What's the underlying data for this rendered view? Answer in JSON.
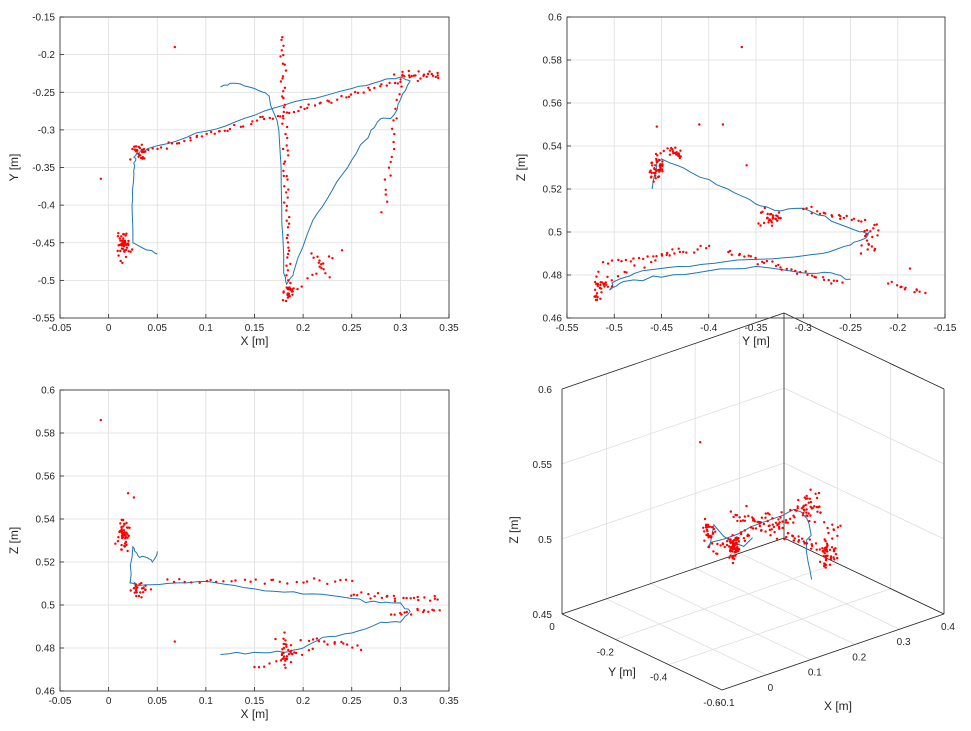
{
  "colors": {
    "trajectory": "#1f77b4",
    "points": "#ff0000",
    "grid": "#dedede",
    "axis": "#262626"
  },
  "chart_data": [
    {
      "type": "scatter",
      "xlabel": "X [m]",
      "ylabel": "Y [m]",
      "xlim": [
        -0.05,
        0.35
      ],
      "ylim": [
        -0.55,
        -0.15
      ],
      "xticks": [
        "-0.05",
        "0",
        "0.05",
        "0.1",
        "0.15",
        "0.2",
        "0.25",
        "0.3",
        "0.35"
      ],
      "yticks": [
        "-0.55",
        "-0.5",
        "-0.45",
        "-0.4",
        "-0.35",
        "-0.3",
        "-0.25",
        "-0.2",
        "-0.15"
      ],
      "grid": true,
      "series": [
        {
          "kind": "line",
          "x": [
            0.05,
            0.035,
            0.025,
            0.024,
            0.026,
            0.028,
            0.027,
            0.03,
            0.03,
            0.04,
            0.08,
            0.12,
            0.16,
            0.2,
            0.25,
            0.28,
            0.3,
            0.31,
            0.3,
            0.29,
            0.28,
            0.27,
            0.25,
            0.23,
            0.21,
            0.19,
            0.183,
            0.18,
            0.178,
            0.175,
            0.165,
            0.15,
            0.13,
            0.115
          ],
          "y": [
            -0.465,
            -0.457,
            -0.45,
            -0.4,
            -0.36,
            -0.34,
            -0.335,
            -0.33,
            -0.332,
            -0.325,
            -0.31,
            -0.295,
            -0.275,
            -0.26,
            -0.245,
            -0.235,
            -0.23,
            -0.235,
            -0.26,
            -0.285,
            -0.285,
            -0.3,
            -0.34,
            -0.38,
            -0.42,
            -0.49,
            -0.505,
            -0.49,
            -0.4,
            -0.3,
            -0.255,
            -0.245,
            -0.238,
            -0.243
          ]
        },
        {
          "kind": "points",
          "clusters": [
            {
              "x": 0.016,
              "y": -0.452,
              "sx": 0.003,
              "sy": 0.008,
              "n": 60
            },
            {
              "x": 0.03,
              "y": -0.33,
              "sx": 0.004,
              "sy": 0.006,
              "n": 25
            },
            {
              "x": 0.185,
              "y": -0.515,
              "sx": 0.003,
              "sy": 0.004,
              "n": 25
            },
            {
              "x": 0.322,
              "y": -0.228,
              "sx": 0.012,
              "sy": 0.003,
              "n": 25
            }
          ],
          "paths": [
            {
              "x": [
                0.035,
                0.3
              ],
              "y": [
                -0.33,
                -0.235
              ],
              "n": 70
            },
            {
              "x": [
                0.178,
                0.186
              ],
              "y": [
                -0.175,
                -0.51
              ],
              "n": 60
            },
            {
              "x": [
                0.3,
                0.282
              ],
              "y": [
                -0.235,
                -0.405
              ],
              "n": 20
            },
            {
              "x": [
                0.19,
                0.23
              ],
              "y": [
                -0.515,
                -0.47
              ],
              "n": 10
            },
            {
              "x": [
                0.21,
                0.225
              ],
              "y": [
                -0.465,
                -0.495
              ],
              "n": 10
            }
          ],
          "singles": [
            {
              "x": 0.068,
              "y": -0.19
            },
            {
              "x": -0.008,
              "y": -0.365
            },
            {
              "x": 0.24,
              "y": -0.46
            }
          ]
        }
      ]
    },
    {
      "type": "scatter",
      "xlabel": "Y [m]",
      "ylabel": "Z [m]",
      "xlim": [
        -0.55,
        -0.15
      ],
      "ylim": [
        0.46,
        0.6
      ],
      "xticks": [
        "-0.55",
        "-0.5",
        "-0.45",
        "-0.4",
        "-0.35",
        "-0.3",
        "-0.25",
        "-0.2",
        "-0.15"
      ],
      "yticks": [
        "0.46",
        "0.48",
        "0.5",
        "0.52",
        "0.54",
        "0.56",
        "0.58",
        "0.6"
      ],
      "grid": true,
      "series": [
        {
          "kind": "line",
          "x": [
            -0.46,
            -0.455,
            -0.45,
            -0.42,
            -0.38,
            -0.35,
            -0.33,
            -0.3,
            -0.27,
            -0.24,
            -0.23,
            -0.235,
            -0.25,
            -0.28,
            -0.32,
            -0.37,
            -0.42,
            -0.47,
            -0.5,
            -0.505,
            -0.49,
            -0.45,
            -0.4,
            -0.35,
            -0.3,
            -0.27,
            -0.25
          ],
          "y": [
            0.52,
            0.532,
            0.534,
            0.528,
            0.52,
            0.513,
            0.51,
            0.511,
            0.505,
            0.5,
            0.5,
            0.497,
            0.494,
            0.49,
            0.488,
            0.487,
            0.484,
            0.482,
            0.477,
            0.473,
            0.477,
            0.479,
            0.482,
            0.484,
            0.481,
            0.481,
            0.478
          ]
        },
        {
          "kind": "points",
          "clusters": [
            {
              "x": -0.455,
              "y": 0.53,
              "sx": 0.004,
              "sy": 0.003,
              "n": 50
            },
            {
              "x": -0.435,
              "y": 0.537,
              "sx": 0.004,
              "sy": 0.0015,
              "n": 20
            },
            {
              "x": -0.335,
              "y": 0.507,
              "sx": 0.005,
              "sy": 0.002,
              "n": 30
            },
            {
              "x": -0.515,
              "y": 0.475,
              "sx": 0.004,
              "sy": 0.004,
              "n": 30
            },
            {
              "x": -0.23,
              "y": 0.498,
              "sx": 0.006,
              "sy": 0.004,
              "n": 20
            }
          ],
          "paths": [
            {
              "x": [
                -0.51,
                -0.4
              ],
              "y": [
                0.485,
                0.493
              ],
              "n": 25
            },
            {
              "x": [
                -0.38,
                -0.26
              ],
              "y": [
                0.491,
                0.476
              ],
              "n": 35
            },
            {
              "x": [
                -0.3,
                -0.235
              ],
              "y": [
                0.511,
                0.505
              ],
              "n": 20
            },
            {
              "x": [
                -0.21,
                -0.17
              ],
              "y": [
                0.476,
                0.472
              ],
              "n": 12
            },
            {
              "x": [
                -0.505,
                -0.43
              ],
              "y": [
                0.478,
                0.492
              ],
              "n": 12
            }
          ],
          "singles": [
            {
              "x": -0.365,
              "y": 0.586
            },
            {
              "x": -0.455,
              "y": 0.549
            },
            {
              "x": -0.41,
              "y": 0.55
            },
            {
              "x": -0.385,
              "y": 0.55
            },
            {
              "x": -0.36,
              "y": 0.531
            },
            {
              "x": -0.187,
              "y": 0.483
            }
          ]
        }
      ]
    },
    {
      "type": "scatter",
      "xlabel": "X [m]",
      "ylabel": "Z [m]",
      "xlim": [
        -0.05,
        0.35
      ],
      "ylim": [
        0.46,
        0.6
      ],
      "xticks": [
        "-0.05",
        "0",
        "0.05",
        "0.1",
        "0.15",
        "0.2",
        "0.25",
        "0.3",
        "0.35"
      ],
      "yticks": [
        "0.46",
        "0.48",
        "0.5",
        "0.52",
        "0.54",
        "0.56",
        "0.58",
        "0.6"
      ],
      "grid": true,
      "series": [
        {
          "kind": "line",
          "x": [
            0.05,
            0.045,
            0.04,
            0.03,
            0.025,
            0.022,
            0.028,
            0.03,
            0.06,
            0.1,
            0.14,
            0.18,
            0.22,
            0.25,
            0.28,
            0.3,
            0.31,
            0.3,
            0.28,
            0.25,
            0.22,
            0.2,
            0.18,
            0.15,
            0.115
          ],
          "y": [
            0.525,
            0.52,
            0.522,
            0.523,
            0.527,
            0.51,
            0.51,
            0.509,
            0.51,
            0.511,
            0.508,
            0.506,
            0.505,
            0.503,
            0.501,
            0.501,
            0.497,
            0.492,
            0.492,
            0.487,
            0.485,
            0.48,
            0.478,
            0.478,
            0.477
          ]
        },
        {
          "kind": "points",
          "clusters": [
            {
              "x": 0.015,
              "y": 0.533,
              "sx": 0.003,
              "sy": 0.004,
              "n": 50
            },
            {
              "x": 0.032,
              "y": 0.507,
              "sx": 0.004,
              "sy": 0.002,
              "n": 25
            },
            {
              "x": 0.183,
              "y": 0.477,
              "sx": 0.004,
              "sy": 0.005,
              "n": 30
            }
          ],
          "paths": [
            {
              "x": [
                0.06,
                0.25
              ],
              "y": [
                0.511,
                0.511
              ],
              "n": 30
            },
            {
              "x": [
                0.25,
                0.34
              ],
              "y": [
                0.505,
                0.502
              ],
              "n": 25
            },
            {
              "x": [
                0.29,
                0.34
              ],
              "y": [
                0.495,
                0.498
              ],
              "n": 15
            },
            {
              "x": [
                0.2,
                0.26
              ],
              "y": [
                0.485,
                0.48
              ],
              "n": 15
            },
            {
              "x": [
                0.15,
                0.21
              ],
              "y": [
                0.47,
                0.48
              ],
              "n": 12
            }
          ],
          "singles": [
            {
              "x": -0.008,
              "y": 0.586
            },
            {
              "x": 0.068,
              "y": 0.483
            },
            {
              "x": 0.02,
              "y": 0.552
            },
            {
              "x": 0.026,
              "y": 0.55
            }
          ]
        }
      ]
    },
    {
      "type": "scatter3d",
      "xlabel": "X [m]",
      "ylabel": "Y [m]",
      "zlabel": "Z [m]",
      "xlim": [
        -0.1,
        0.4
      ],
      "ylim": [
        -0.6,
        0
      ],
      "zlim": [
        0.45,
        0.6
      ],
      "xticks": [
        "-0.1",
        "0",
        "0.1",
        "0.2",
        "0.3",
        "0.4"
      ],
      "yticks": [
        "-0.6",
        "-0.4",
        "-0.2",
        "0"
      ],
      "zticks": [
        "0.45",
        "0.5",
        "0.55",
        "0.6"
      ],
      "grid": true
    }
  ]
}
